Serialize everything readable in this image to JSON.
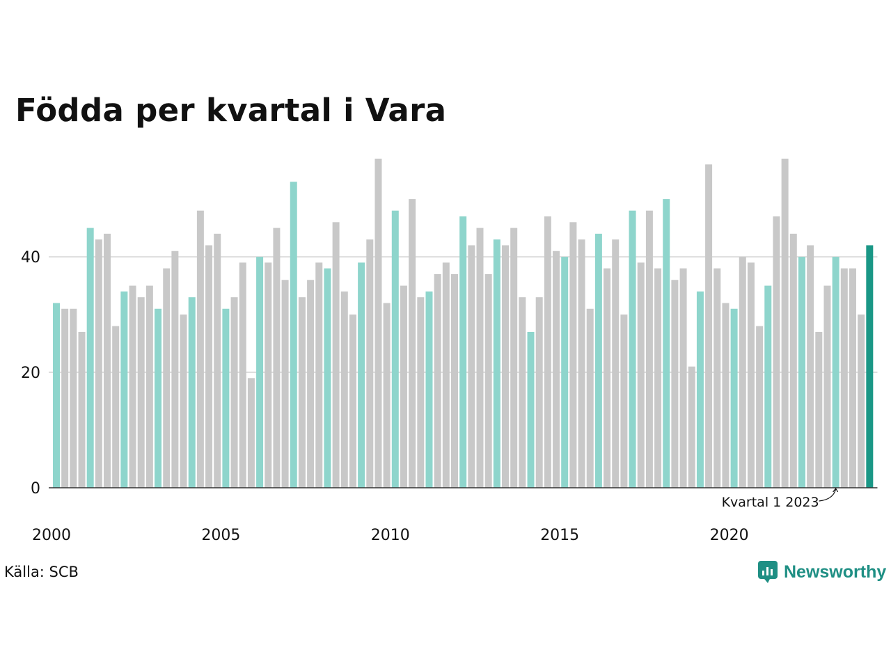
{
  "chart_data": {
    "type": "bar",
    "title": "Födda per kvartal i Vara",
    "xlabel": "",
    "ylabel": "",
    "ylim": [
      0,
      57
    ],
    "yticks": [
      0,
      20,
      40
    ],
    "xticks": [
      "2000",
      "2005",
      "2010",
      "2015",
      "2020"
    ],
    "grid": true,
    "legend": "none",
    "colors": {
      "q1": "#8ed5cc",
      "other": "#c8c8c8",
      "latest": "#1a9786",
      "grid": "#dddddd",
      "axis": "#333333"
    },
    "series": [
      {
        "start_year": 2000,
        "values": [
          32,
          31,
          31,
          27,
          45,
          43,
          44,
          28,
          34,
          35,
          33,
          35,
          31,
          38,
          41,
          30,
          33,
          48,
          42,
          44,
          31,
          33,
          39,
          19,
          40,
          39,
          45,
          36,
          53,
          33,
          36,
          39,
          38,
          46,
          34,
          30,
          39,
          43,
          57,
          32,
          48,
          35,
          50,
          33,
          34,
          37,
          39,
          37,
          47,
          42,
          45,
          37,
          43,
          42,
          45,
          33,
          27,
          33,
          47,
          41,
          40,
          46,
          43,
          31,
          44,
          38,
          43,
          30,
          48,
          39,
          48,
          38,
          50,
          36,
          38,
          21,
          34,
          56,
          38,
          32,
          31,
          40,
          39,
          28,
          35,
          47,
          57,
          44,
          40,
          42,
          27,
          35,
          40,
          38,
          38,
          30,
          42
        ]
      }
    ],
    "annotation": "Kvartal 1 2023"
  },
  "source": "Källa: SCB",
  "logo": {
    "text": "Newsworthy",
    "icon": "bar-chart-bubble-icon",
    "color": "#1f8f84"
  }
}
